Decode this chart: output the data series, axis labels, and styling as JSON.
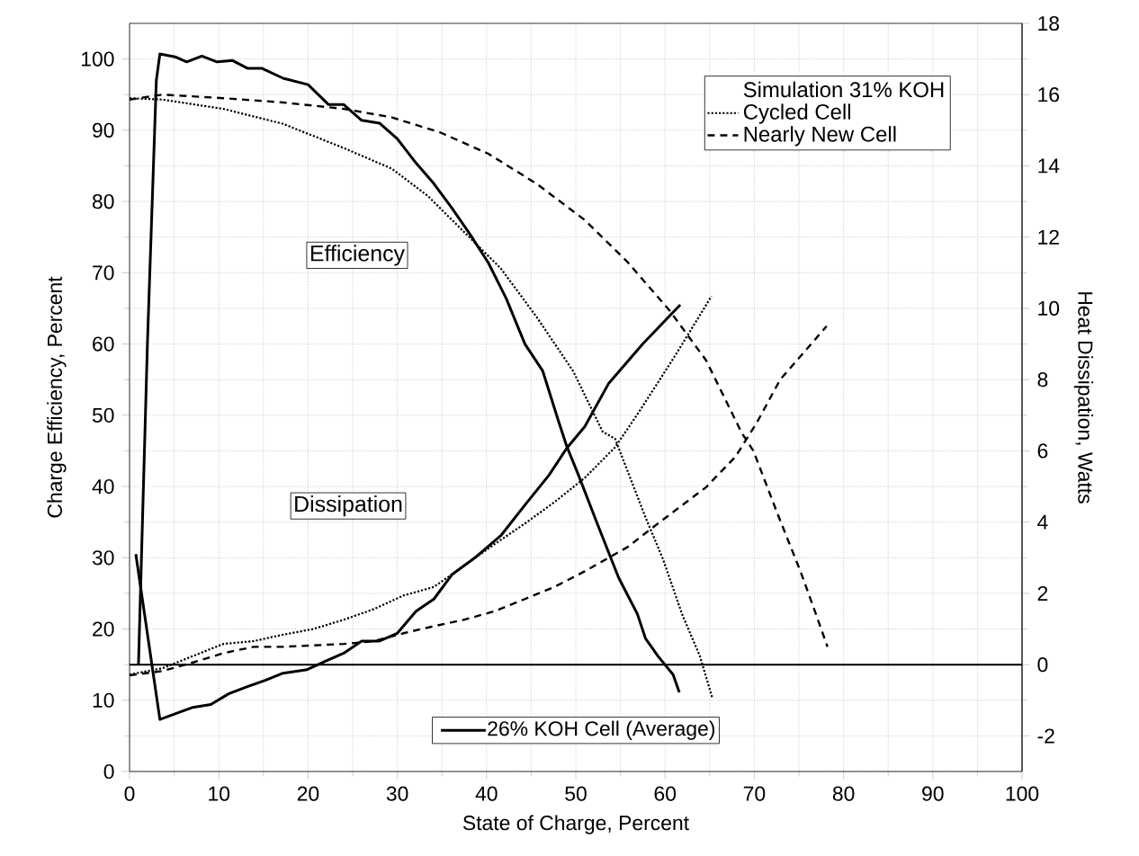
{
  "chart_data": {
    "type": "line",
    "xlabel": "State of Charge, Percent",
    "ylabel": "Charge Efficiency, Percent",
    "y2label": "Heat Dissipation, Watts",
    "legend_title": "Simulation 31% KOH",
    "legend": "right",
    "grid": true,
    "annotations": [
      "Efficiency",
      "Dissipation"
    ],
    "xlim": [
      0,
      100
    ],
    "ylim": [
      0,
      105
    ],
    "y2lim": [
      -3,
      18
    ],
    "xticks": [
      0,
      10,
      20,
      30,
      40,
      50,
      60,
      70,
      80,
      90,
      100
    ],
    "yticks": [
      0,
      10,
      20,
      30,
      40,
      50,
      60,
      70,
      80,
      90,
      100
    ],
    "y2ticks": [
      -2,
      0,
      2,
      4,
      6,
      8,
      10,
      12,
      14,
      16,
      18
    ],
    "ref_lines": [
      {
        "axis": "y2",
        "value": 0,
        "color": "#000000",
        "line_style": "solid"
      }
    ],
    "series": [
      {
        "name": "26% KOH Cell (Average)",
        "color": "#000000",
        "line_style": "solid",
        "x": [
          1.0,
          2.0,
          3.0,
          3.4,
          5.1,
          6.4,
          8.1,
          9.8,
          11.5,
          13.2,
          14.8,
          17.2,
          20,
          22.3,
          24,
          26,
          28,
          30,
          32.1,
          34.1,
          36.1,
          38.2,
          40.2,
          42.2,
          44.3,
          46.3,
          48,
          49,
          50.3,
          52.4,
          54.8,
          56.9,
          57.8,
          59.2,
          60.9,
          61.6
        ],
        "values": [
          15,
          60,
          97,
          100.7,
          100.3,
          99.6,
          100.4,
          99.6,
          99.8,
          98.7,
          98.7,
          97.3,
          96.4,
          93.6,
          93.6,
          91.4,
          91,
          88.8,
          85.4,
          82.5,
          79.1,
          75.3,
          71.4,
          66.4,
          60,
          56.2,
          49.4,
          45.6,
          41.6,
          34.8,
          27.2,
          22.1,
          18.7,
          16.2,
          13.6,
          11.1
        ]
      },
      {
        "color": "#000000",
        "line_style": "solid",
        "axis": "y2",
        "x": [
          0.7,
          3.4,
          5.1,
          7.1,
          9.1,
          11.1,
          13.2,
          15.2,
          17.2,
          19.9,
          22,
          24,
          26,
          28,
          30,
          32.1,
          34.1,
          36.1,
          38.9,
          41.6,
          44.3,
          47,
          49,
          51,
          53.7,
          57.5,
          61.7
        ],
        "values": [
          3.1,
          -1.54,
          -1.38,
          -1.2,
          -1.12,
          -0.82,
          -0.62,
          -0.44,
          -0.24,
          -0.14,
          0.1,
          0.32,
          0.66,
          0.66,
          0.88,
          1.5,
          1.84,
          2.52,
          3.04,
          3.62,
          4.48,
          5.32,
          6.08,
          6.68,
          7.9,
          9.0,
          10.1
        ]
      },
      {
        "name": "Cycled Cell",
        "color": "#000000",
        "line_style": "dotted",
        "x": [
          0,
          3.7,
          10.5,
          17.2,
          24,
          29.4,
          33.4,
          37.5,
          41.6,
          45.6,
          49.7,
          53,
          54.4,
          57.8,
          59.8,
          61.9,
          63.9,
          65.3
        ],
        "values": [
          94.5,
          94.3,
          93,
          90.9,
          87.5,
          84.6,
          80.8,
          75.7,
          70.6,
          63.8,
          56.2,
          47.7,
          46.7,
          35.7,
          29.7,
          22.1,
          16.2,
          10.3
        ]
      },
      {
        "color": "#000000",
        "line_style": "dotted",
        "axis": "y2",
        "x": [
          0,
          3.7,
          7.1,
          10.5,
          13.9,
          17.2,
          20.6,
          24,
          27.4,
          30.7,
          34.1,
          37.5,
          40.9,
          44.3,
          47.6,
          51,
          54.4,
          57.1,
          61.2,
          65.2
        ],
        "values": [
          -0.28,
          -0.1,
          0.24,
          0.58,
          0.66,
          0.84,
          1.0,
          1.26,
          1.56,
          1.94,
          2.18,
          2.78,
          3.38,
          3.96,
          4.56,
          5.24,
          6.1,
          7.1,
          8.7,
          10.34
        ]
      },
      {
        "name": "Nearly New Cell",
        "color": "#000000",
        "line_style": "dashed",
        "x": [
          0,
          3.7,
          10.5,
          17.2,
          24,
          29.4,
          34.8,
          40.2,
          45.6,
          51,
          55.8,
          60.5,
          64.6,
          68.6,
          69.9,
          72.5,
          75.2,
          76.9,
          78.2
        ],
        "values": [
          94.3,
          95,
          94.5,
          93.9,
          93,
          91.8,
          89.7,
          86.7,
          82.5,
          77.4,
          71.5,
          64.7,
          57.7,
          47.5,
          45,
          36.5,
          28,
          22.1,
          17.5
        ]
      },
      {
        "color": "#000000",
        "line_style": "dashed",
        "axis": "y2",
        "x": [
          0,
          3.7,
          7.1,
          10.5,
          13.9,
          17.2,
          20.6,
          24,
          27.4,
          30.7,
          34.1,
          37.5,
          40.9,
          44.3,
          47.6,
          51,
          55.8,
          59.2,
          64.6,
          67.9,
          70.3,
          72.9,
          78.1
        ],
        "values": [
          -0.3,
          -0.18,
          0.06,
          0.32,
          0.5,
          0.5,
          0.54,
          0.58,
          0.66,
          0.88,
          1.08,
          1.26,
          1.5,
          1.84,
          2.18,
          2.62,
          3.3,
          3.96,
          4.98,
          5.84,
          6.8,
          8.0,
          9.5
        ]
      }
    ]
  }
}
